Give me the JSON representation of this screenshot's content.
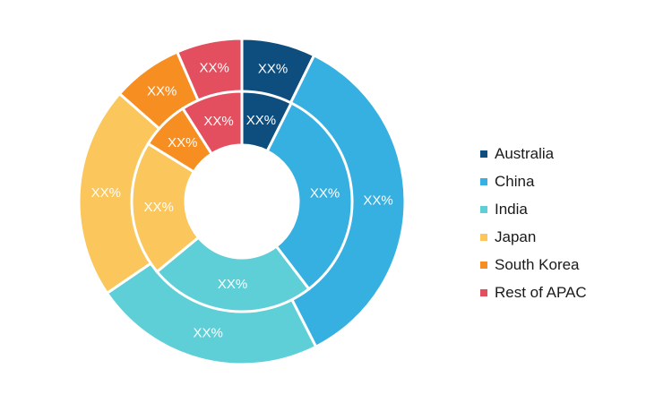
{
  "chart_data": {
    "type": "pie",
    "categories": [
      "Australia",
      "China",
      "India",
      "Japan",
      "South Korea",
      "Rest of APAC"
    ],
    "colors": [
      "#0e4e7e",
      "#36afe1",
      "#5ecfd7",
      "#fbc65b",
      "#f68e22",
      "#e34f5f"
    ],
    "series": [
      {
        "ring": "outer",
        "values": [
          7.3,
          35.2,
          23.0,
          21.0,
          7.0,
          6.5
        ],
        "labels": [
          "XX%",
          "XX%",
          "XX%",
          "XX%",
          "XX%",
          "XX%"
        ]
      },
      {
        "ring": "inner",
        "values": [
          7.4,
          32.2,
          24.4,
          19.8,
          7.2,
          9.0
        ],
        "labels": [
          "XX%",
          "XX%",
          "XX%",
          "XX%",
          "XX%",
          "XX%"
        ]
      }
    ],
    "legend_position": "right"
  }
}
